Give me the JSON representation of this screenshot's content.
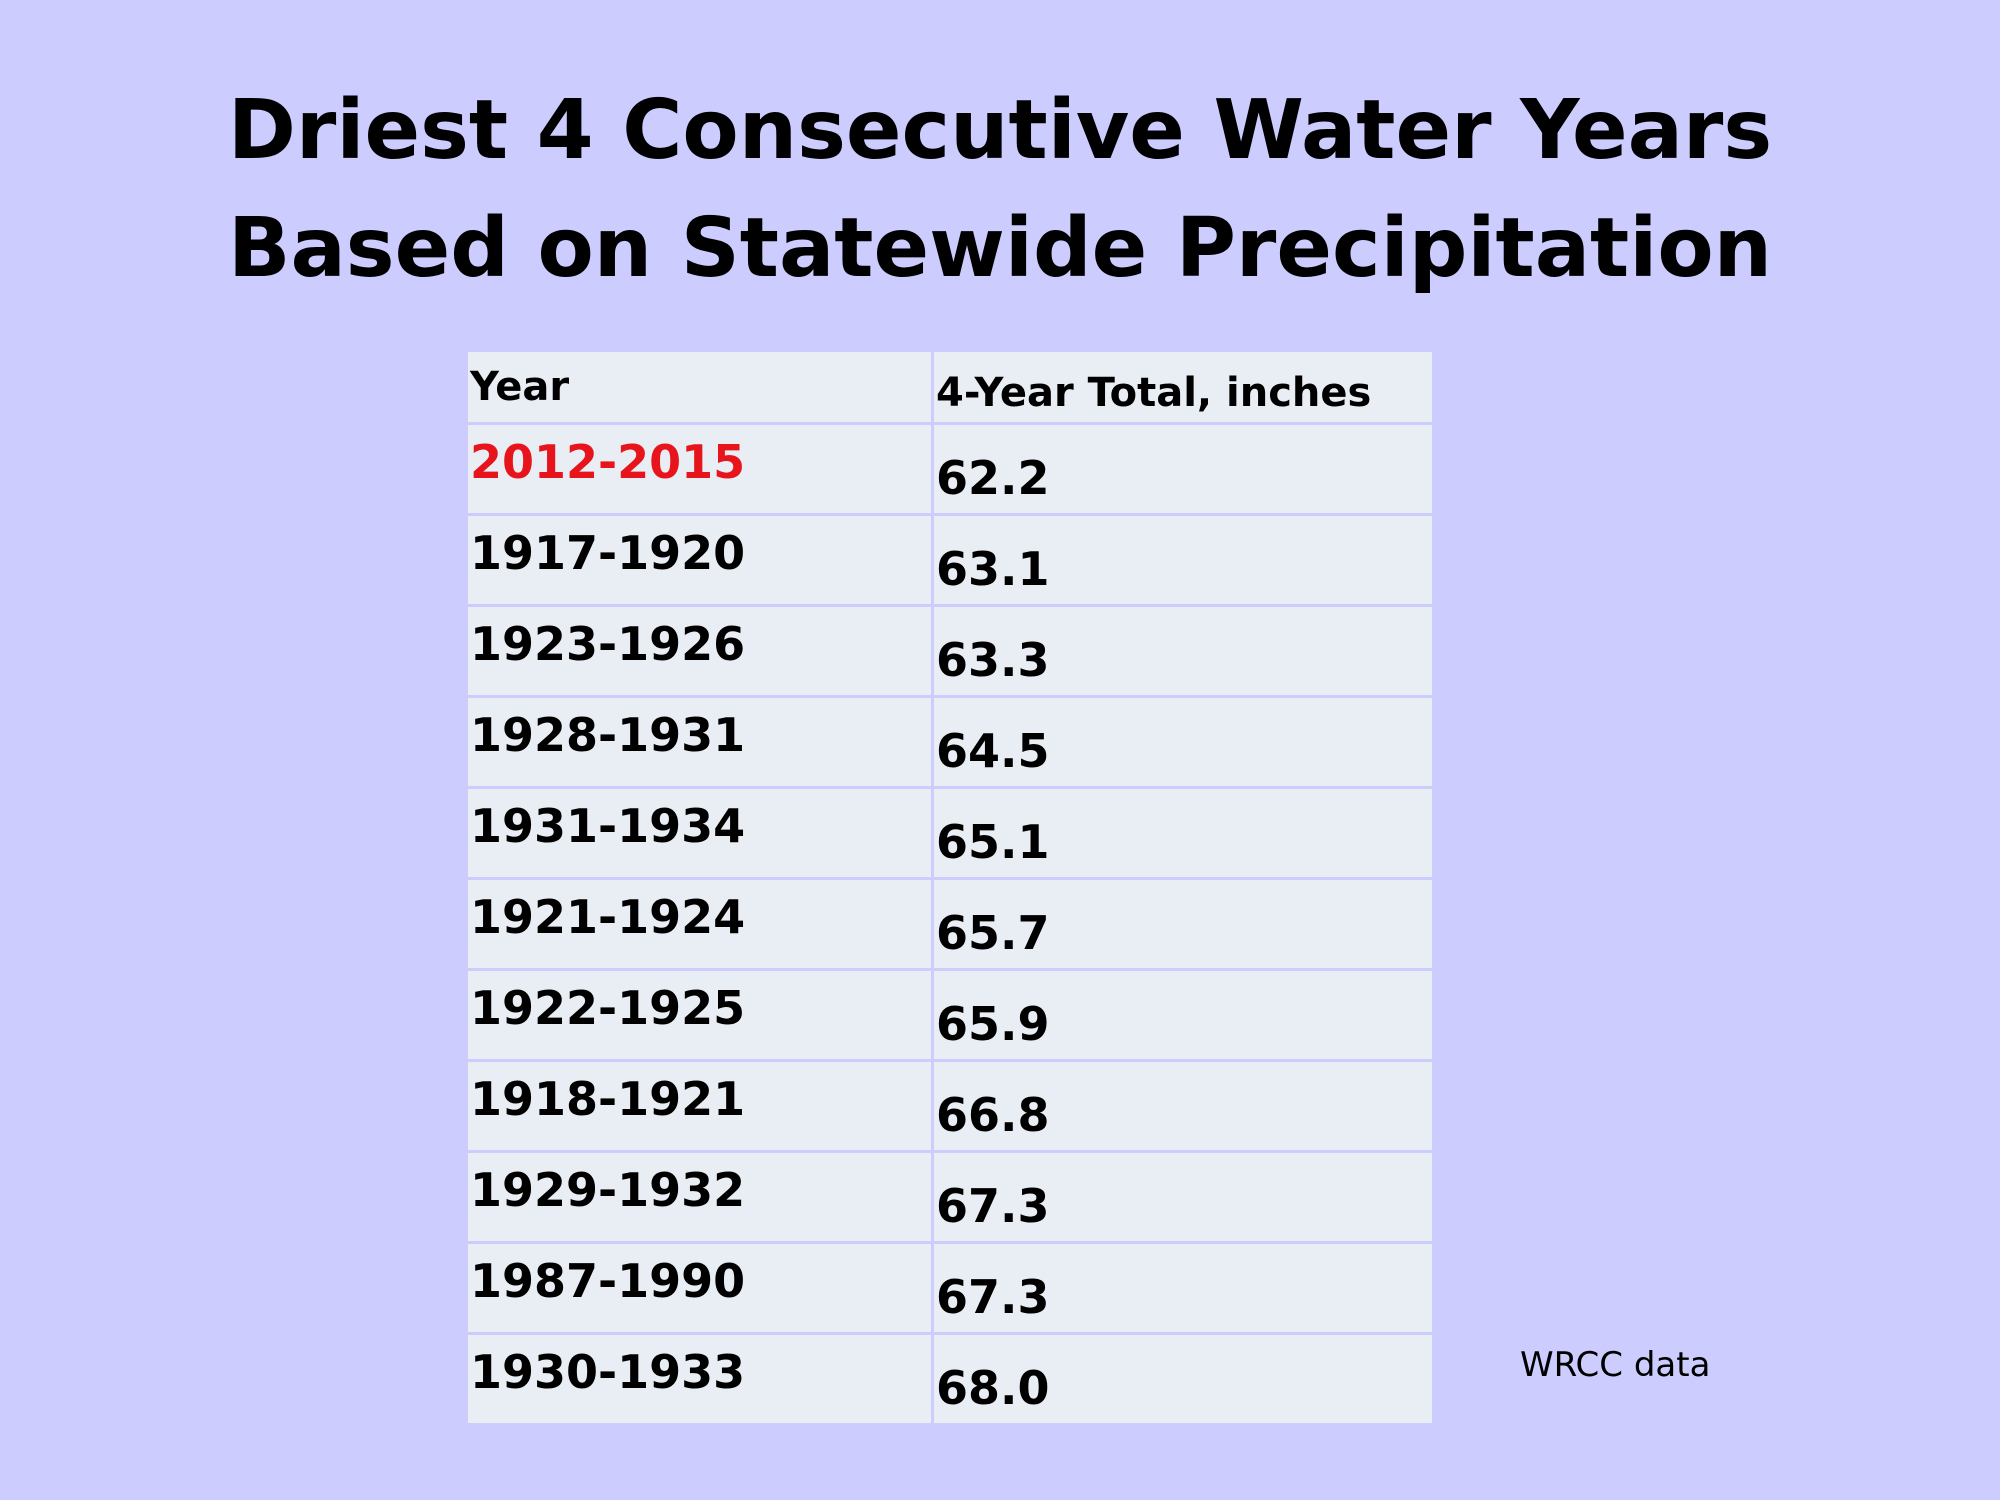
{
  "title": {
    "line1": "Driest 4 Consecutive Water Years",
    "line2": "Based on Statewide Precipitation"
  },
  "table": {
    "headers": {
      "year": "Year",
      "total": "4-Year Total, inches"
    },
    "highlight_color": "#e8141c",
    "rows": [
      {
        "year": "2012-2015",
        "total": "62.2",
        "highlight": true
      },
      {
        "year": "1917-1920",
        "total": "63.1",
        "highlight": false
      },
      {
        "year": "1923-1926",
        "total": "63.3",
        "highlight": false
      },
      {
        "year": "1928-1931",
        "total": "64.5",
        "highlight": false
      },
      {
        "year": "1931-1934",
        "total": "65.1",
        "highlight": false
      },
      {
        "year": "1921-1924",
        "total": "65.7",
        "highlight": false
      },
      {
        "year": "1922-1925",
        "total": "65.9",
        "highlight": false
      },
      {
        "year": "1918-1921",
        "total": "66.8",
        "highlight": false
      },
      {
        "year": "1929-1932",
        "total": "67.3",
        "highlight": false
      },
      {
        "year": "1987-1990",
        "total": "67.3",
        "highlight": false
      },
      {
        "year": "1930-1933",
        "total": "68.0",
        "highlight": false
      }
    ]
  },
  "source": "WRCC data",
  "colors": {
    "background": "#ccccff",
    "cell_fill": "#e9edf4",
    "text": "#000000"
  }
}
